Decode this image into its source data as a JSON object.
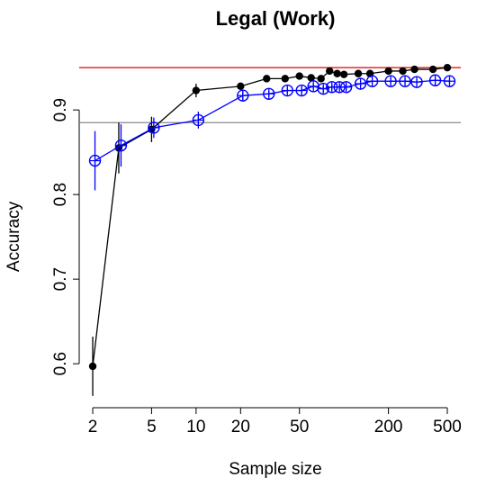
{
  "chart_data": {
    "type": "line",
    "title": "Legal (Work)",
    "x_label": "Sample size",
    "y_label": "Accuracy",
    "log_x": true,
    "x": [
      2,
      3,
      5,
      10,
      20,
      30,
      40,
      50,
      60,
      70,
      80,
      90,
      100,
      125,
      150,
      200,
      250,
      300,
      400,
      500
    ],
    "series": [
      {
        "color": "#000000",
        "marker": "filled-circle",
        "values": [
          0.597,
          0.855,
          0.877,
          0.923,
          0.928,
          0.937,
          0.937,
          0.94,
          0.938,
          0.937,
          0.946,
          0.943,
          0.942,
          0.943,
          0.943,
          0.946,
          0.946,
          0.948,
          0.948,
          0.95
        ],
        "errors": [
          0.035,
          0.03,
          0.015,
          0.008,
          0.004,
          0.003,
          0.003,
          0.003,
          0.003,
          0.003,
          0.003,
          0.003,
          0.003,
          0.003,
          0.003,
          0.003,
          0.003,
          0.003,
          0.003,
          0.003
        ]
      },
      {
        "color": "#0000ff",
        "marker": "circle-plus",
        "values": [
          0.84,
          0.858,
          0.879,
          0.888,
          0.917,
          0.919,
          0.923,
          0.923,
          0.928,
          0.925,
          0.927,
          0.927,
          0.927,
          0.931,
          0.934,
          0.934,
          0.934,
          0.933,
          0.935,
          0.934
        ],
        "errors": [
          0.035,
          0.025,
          0.012,
          0.01,
          0.007,
          0.004,
          0.004,
          0.004,
          0.004,
          0.004,
          0.004,
          0.004,
          0.004,
          0.004,
          0.004,
          0.004,
          0.004,
          0.004,
          0.004,
          0.004
        ]
      }
    ],
    "hlines": [
      {
        "value": 0.95,
        "color": "#dd0000"
      },
      {
        "value": 0.885,
        "color": "#888888"
      }
    ],
    "xlim": [
      1.62,
      617
    ],
    "ylim": [
      0.564,
      0.964
    ],
    "xticks": [
      2,
      5,
      10,
      20,
      50,
      200,
      500
    ],
    "yticks": [
      0.6,
      0.7,
      0.8,
      0.9
    ]
  }
}
